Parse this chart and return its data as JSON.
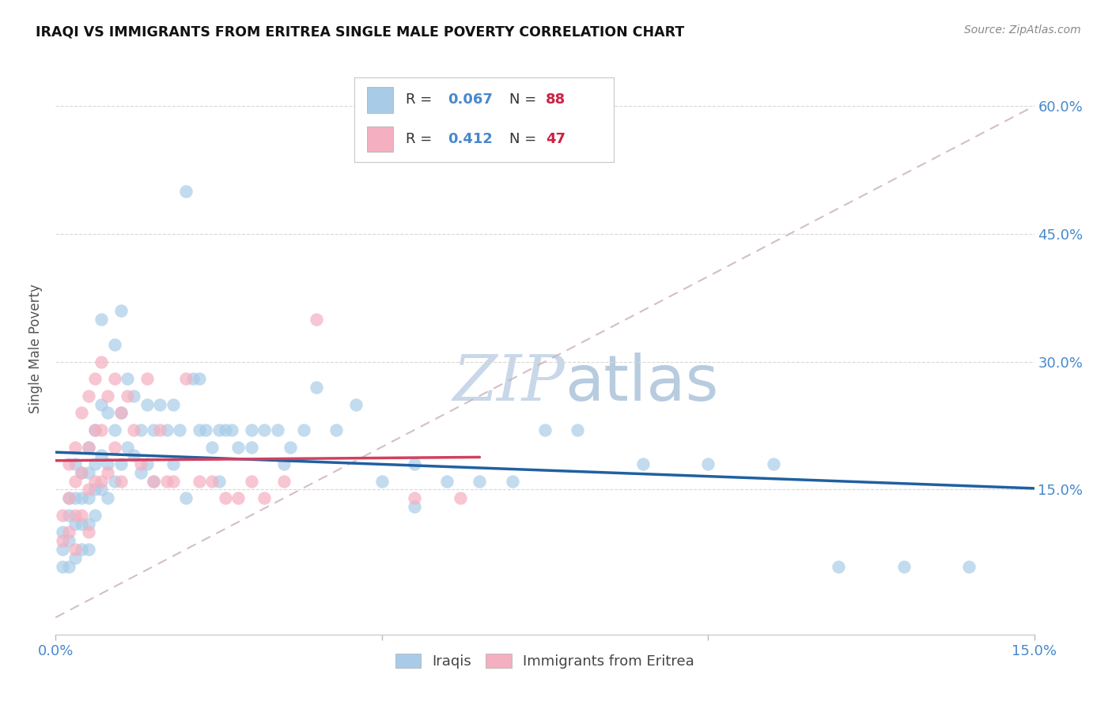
{
  "title": "IRAQI VS IMMIGRANTS FROM ERITREA SINGLE MALE POVERTY CORRELATION CHART",
  "source": "Source: ZipAtlas.com",
  "ylabel": "Single Male Poverty",
  "xlim": [
    0.0,
    0.15
  ],
  "ylim": [
    -0.02,
    0.65
  ],
  "yticks": [
    0.15,
    0.3,
    0.45,
    0.6
  ],
  "ytick_labels": [
    "15.0%",
    "30.0%",
    "45.0%",
    "60.0%"
  ],
  "xticks": [
    0.0,
    0.05,
    0.1,
    0.15
  ],
  "xtick_labels": [
    "0.0%",
    "",
    "",
    "15.0%"
  ],
  "iraqi_color": "#a8cce8",
  "eritrea_color": "#f4afc0",
  "iraqi_line_color": "#2060a0",
  "eritrea_line_color": "#d04060",
  "dash_line_color": "#c8b0b8",
  "background_color": "#ffffff",
  "watermark_color": "#c8d8e8",
  "grid_color": "#d8d8d8",
  "tick_color": "#4888cc",
  "legend_text_color": "#4888cc",
  "legend_N_color": "#cc2244",
  "ylabel_color": "#555555",
  "title_color": "#111111",
  "source_color": "#888888",
  "iraqi_R": "0.067",
  "iraqi_N": "88",
  "eritrea_R": "0.412",
  "eritrea_N": "47",
  "iraqi_x": [
    0.001,
    0.001,
    0.001,
    0.002,
    0.002,
    0.002,
    0.002,
    0.003,
    0.003,
    0.003,
    0.003,
    0.004,
    0.004,
    0.004,
    0.004,
    0.005,
    0.005,
    0.005,
    0.005,
    0.005,
    0.006,
    0.006,
    0.006,
    0.006,
    0.007,
    0.007,
    0.007,
    0.007,
    0.008,
    0.008,
    0.008,
    0.009,
    0.009,
    0.009,
    0.01,
    0.01,
    0.01,
    0.011,
    0.011,
    0.012,
    0.012,
    0.013,
    0.013,
    0.014,
    0.014,
    0.015,
    0.015,
    0.016,
    0.017,
    0.018,
    0.018,
    0.019,
    0.02,
    0.021,
    0.022,
    0.022,
    0.023,
    0.024,
    0.025,
    0.026,
    0.027,
    0.028,
    0.03,
    0.032,
    0.034,
    0.036,
    0.038,
    0.04,
    0.043,
    0.046,
    0.05,
    0.055,
    0.06,
    0.065,
    0.07,
    0.075,
    0.08,
    0.09,
    0.1,
    0.11,
    0.12,
    0.13,
    0.14,
    0.02,
    0.025,
    0.03,
    0.035,
    0.055
  ],
  "iraqi_y": [
    0.1,
    0.08,
    0.06,
    0.14,
    0.12,
    0.09,
    0.06,
    0.18,
    0.14,
    0.11,
    0.07,
    0.17,
    0.14,
    0.11,
    0.08,
    0.2,
    0.17,
    0.14,
    0.11,
    0.08,
    0.22,
    0.18,
    0.15,
    0.12,
    0.35,
    0.25,
    0.19,
    0.15,
    0.24,
    0.18,
    0.14,
    0.32,
    0.22,
    0.16,
    0.36,
    0.24,
    0.18,
    0.28,
    0.2,
    0.26,
    0.19,
    0.22,
    0.17,
    0.25,
    0.18,
    0.22,
    0.16,
    0.25,
    0.22,
    0.25,
    0.18,
    0.22,
    0.5,
    0.28,
    0.28,
    0.22,
    0.22,
    0.2,
    0.22,
    0.22,
    0.22,
    0.2,
    0.22,
    0.22,
    0.22,
    0.2,
    0.22,
    0.27,
    0.22,
    0.25,
    0.16,
    0.18,
    0.16,
    0.16,
    0.16,
    0.22,
    0.22,
    0.18,
    0.18,
    0.18,
    0.06,
    0.06,
    0.06,
    0.14,
    0.16,
    0.2,
    0.18,
    0.13
  ],
  "eritrea_x": [
    0.001,
    0.001,
    0.002,
    0.002,
    0.002,
    0.003,
    0.003,
    0.003,
    0.003,
    0.004,
    0.004,
    0.004,
    0.005,
    0.005,
    0.005,
    0.005,
    0.006,
    0.006,
    0.006,
    0.007,
    0.007,
    0.007,
    0.008,
    0.008,
    0.009,
    0.009,
    0.01,
    0.01,
    0.011,
    0.012,
    0.013,
    0.014,
    0.015,
    0.016,
    0.017,
    0.018,
    0.02,
    0.022,
    0.024,
    0.026,
    0.028,
    0.03,
    0.032,
    0.035,
    0.04,
    0.055,
    0.062
  ],
  "eritrea_y": [
    0.12,
    0.09,
    0.18,
    0.14,
    0.1,
    0.2,
    0.16,
    0.12,
    0.08,
    0.24,
    0.17,
    0.12,
    0.26,
    0.2,
    0.15,
    0.1,
    0.28,
    0.22,
    0.16,
    0.3,
    0.22,
    0.16,
    0.26,
    0.17,
    0.28,
    0.2,
    0.24,
    0.16,
    0.26,
    0.22,
    0.18,
    0.28,
    0.16,
    0.22,
    0.16,
    0.16,
    0.28,
    0.16,
    0.16,
    0.14,
    0.14,
    0.16,
    0.14,
    0.16,
    0.35,
    0.14,
    0.14
  ]
}
